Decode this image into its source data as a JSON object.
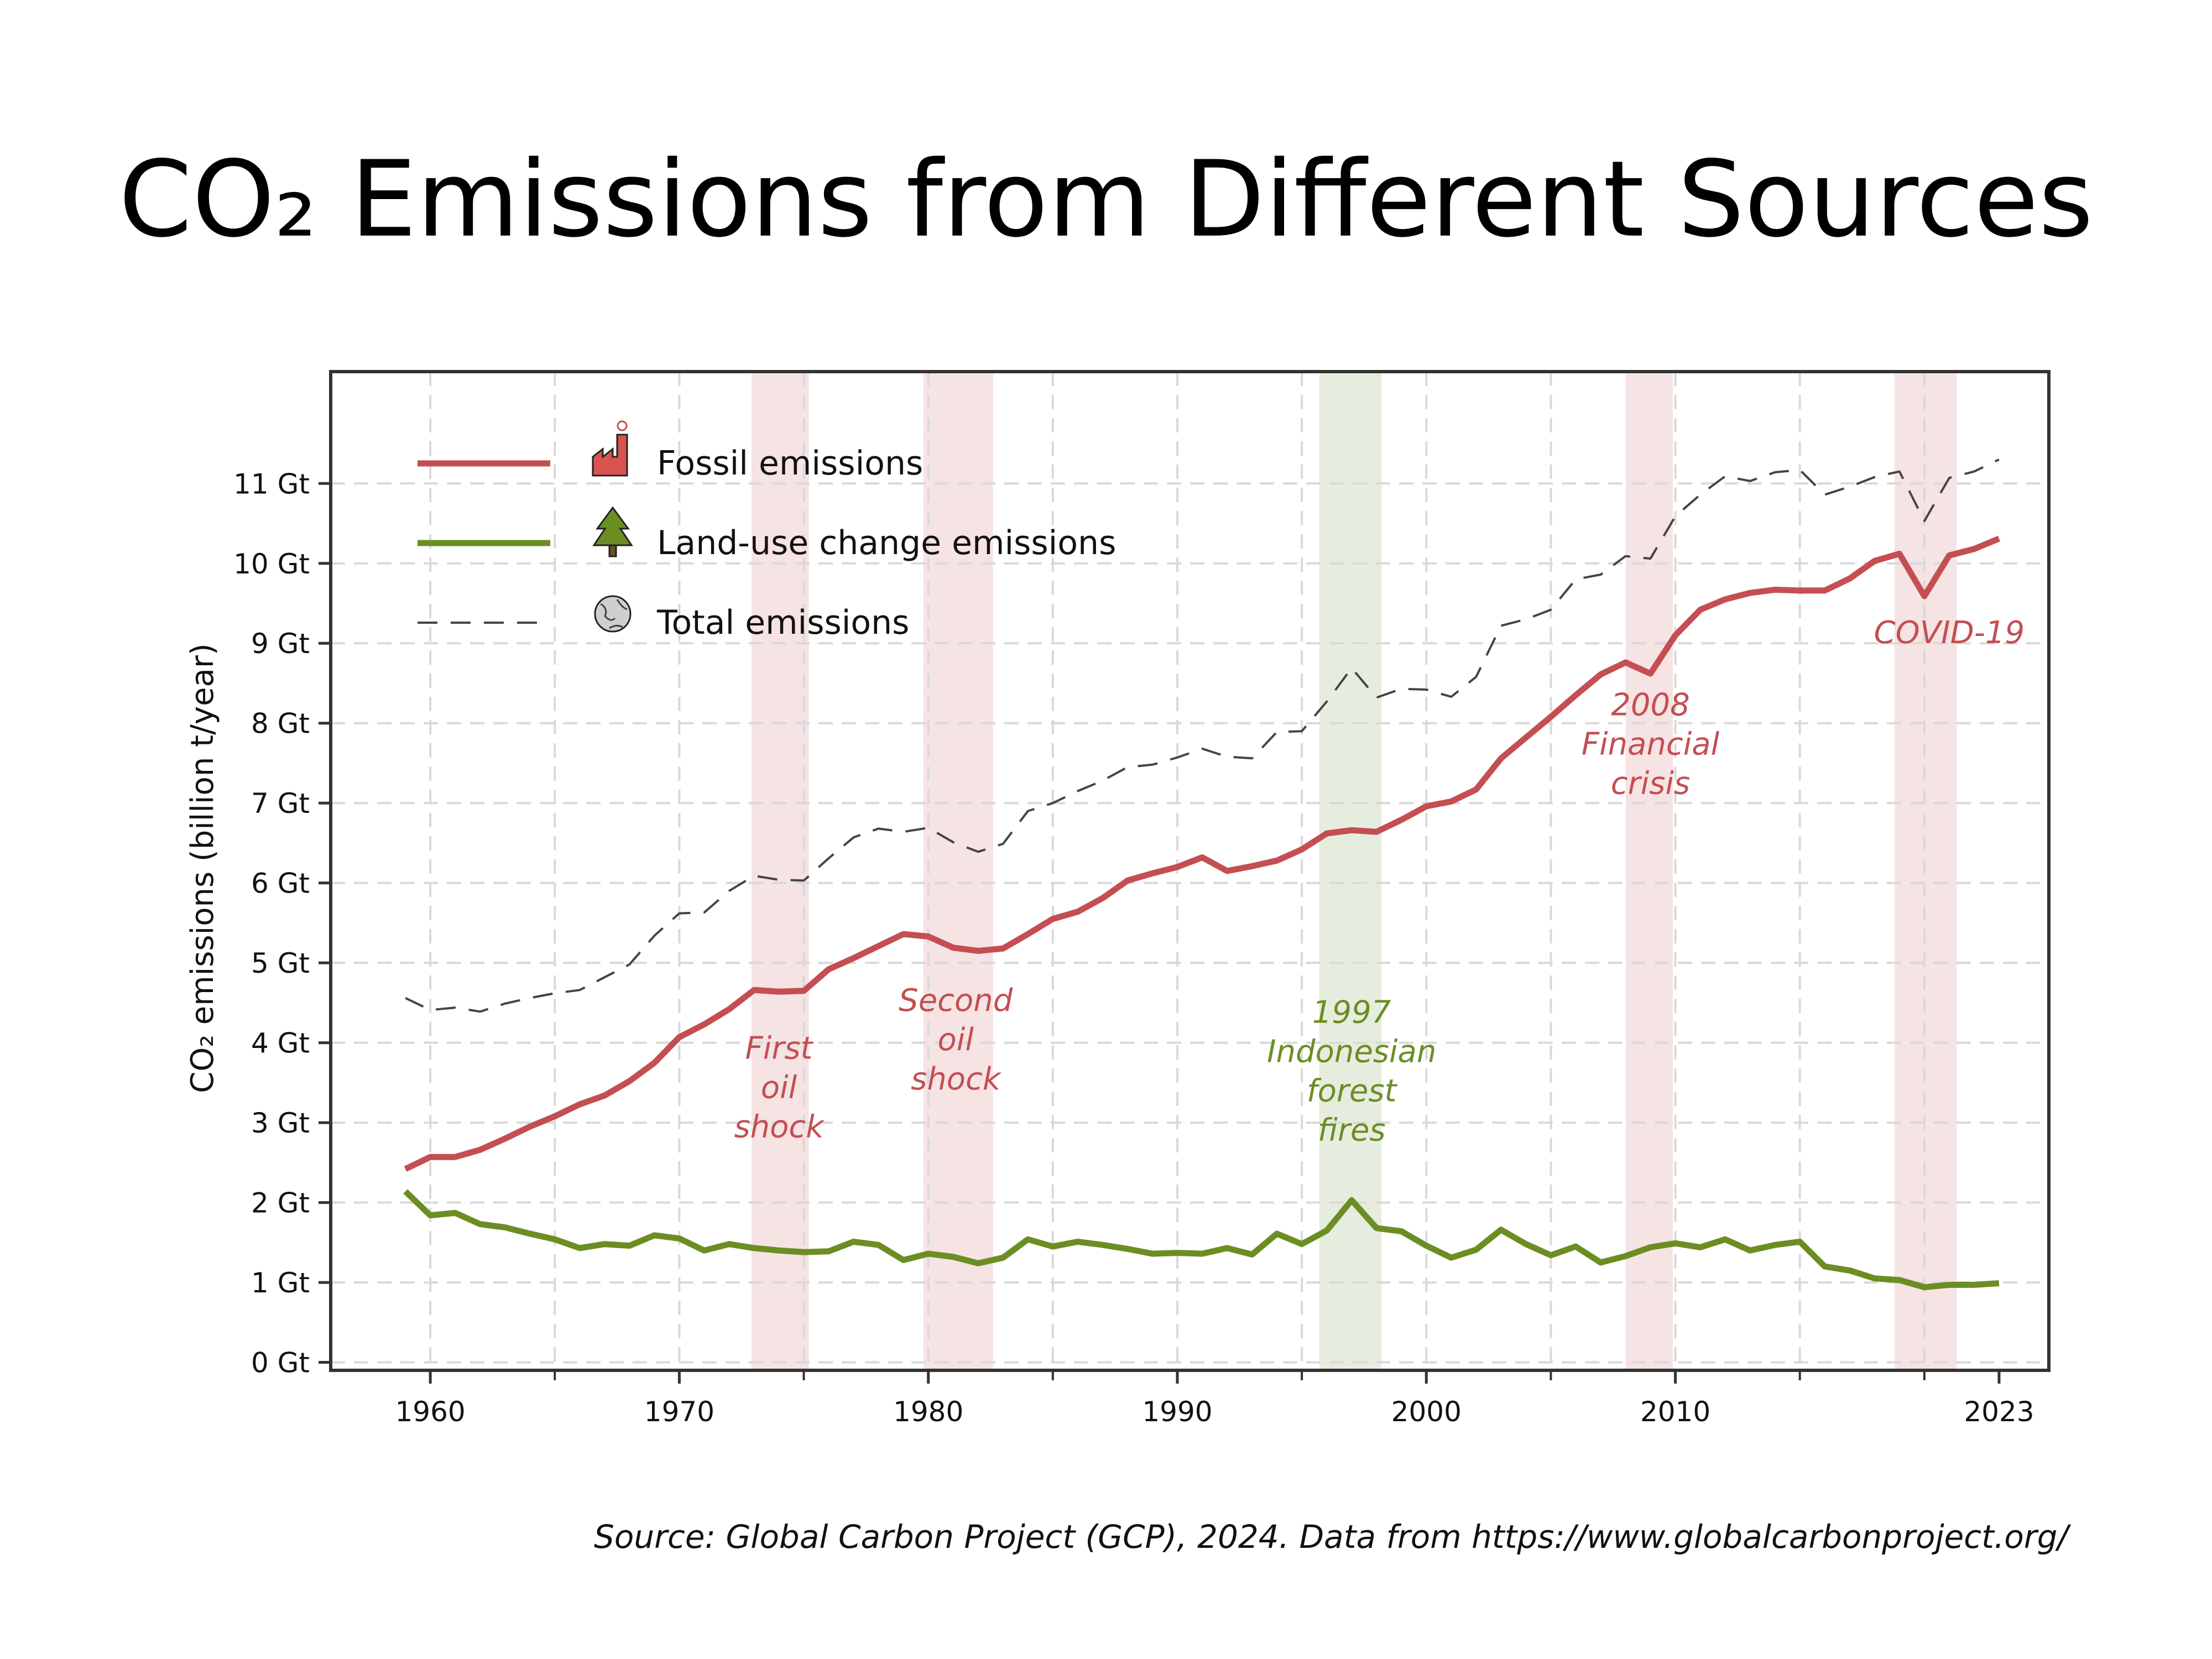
{
  "title": "CO₂ Emissions from Different Sources",
  "source": "Source: Global Carbon Project (GCP), 2024. Data from https://www.globalcarbonproject.org/",
  "chart_data": {
    "type": "line",
    "ylabel": "CO₂ emissions (billion t/year)",
    "xlabel": "",
    "xlim": [
      1956,
      2025
    ],
    "ylim": [
      -0.1,
      12.4
    ],
    "x_ticks": [
      1960,
      1970,
      1980,
      1990,
      2000,
      2010,
      2023
    ],
    "y_ticks": [
      0,
      1,
      2,
      3,
      4,
      5,
      6,
      7,
      8,
      9,
      10,
      11
    ],
    "y_tick_labels": [
      "0 Gt",
      "1 Gt",
      "2 Gt",
      "3 Gt",
      "4 Gt",
      "5 Gt",
      "6 Gt",
      "7 Gt",
      "8 Gt",
      "9 Gt",
      "10 Gt",
      "11 Gt"
    ],
    "x": [
      1959,
      1960,
      1961,
      1962,
      1963,
      1964,
      1965,
      1966,
      1967,
      1968,
      1969,
      1970,
      1971,
      1972,
      1973,
      1974,
      1975,
      1976,
      1977,
      1978,
      1979,
      1980,
      1981,
      1982,
      1983,
      1984,
      1985,
      1986,
      1987,
      1988,
      1989,
      1990,
      1991,
      1992,
      1993,
      1994,
      1995,
      1996,
      1997,
      1998,
      1999,
      2000,
      2001,
      2002,
      2003,
      2004,
      2005,
      2006,
      2007,
      2008,
      2009,
      2010,
      2011,
      2012,
      2013,
      2014,
      2015,
      2016,
      2017,
      2018,
      2019,
      2020,
      2021,
      2022,
      2023
    ],
    "grid": true,
    "legend_position": "top-left",
    "series": [
      {
        "name": "Fossil emissions",
        "color": "#c44e52",
        "style": "solid",
        "icon": "factory-icon",
        "values": [
          2.42,
          2.57,
          2.57,
          2.66,
          2.8,
          2.95,
          3.08,
          3.23,
          3.34,
          3.52,
          3.75,
          4.07,
          4.23,
          4.42,
          4.66,
          4.64,
          4.65,
          4.92,
          5.06,
          5.21,
          5.36,
          5.33,
          5.19,
          5.15,
          5.18,
          5.36,
          5.55,
          5.64,
          5.81,
          6.03,
          6.12,
          6.2,
          6.32,
          6.15,
          6.21,
          6.28,
          6.42,
          6.62,
          6.66,
          6.64,
          6.79,
          6.96,
          7.02,
          7.17,
          7.56,
          7.82,
          8.08,
          8.35,
          8.61,
          8.76,
          8.62,
          9.1,
          9.42,
          9.55,
          9.63,
          9.67,
          9.66,
          9.66,
          9.81,
          10.03,
          10.12,
          9.59,
          10.1,
          10.18,
          10.31
        ]
      },
      {
        "name": "Land-use change emissions",
        "color": "#6b8e23",
        "style": "solid",
        "icon": "tree-icon",
        "values": [
          2.14,
          1.84,
          1.87,
          1.73,
          1.69,
          1.61,
          1.54,
          1.43,
          1.48,
          1.46,
          1.59,
          1.55,
          1.4,
          1.48,
          1.43,
          1.4,
          1.38,
          1.39,
          1.51,
          1.47,
          1.28,
          1.36,
          1.32,
          1.24,
          1.31,
          1.54,
          1.45,
          1.51,
          1.47,
          1.42,
          1.36,
          1.37,
          1.36,
          1.43,
          1.35,
          1.61,
          1.48,
          1.65,
          2.03,
          1.68,
          1.64,
          1.46,
          1.31,
          1.41,
          1.66,
          1.48,
          1.34,
          1.45,
          1.25,
          1.33,
          1.44,
          1.49,
          1.44,
          1.54,
          1.4,
          1.47,
          1.51,
          1.2,
          1.15,
          1.05,
          1.03,
          0.94,
          0.97,
          0.97,
          0.99
        ]
      },
      {
        "name": "Total emissions",
        "color": "#444444",
        "style": "dashed",
        "icon": "globe-icon",
        "values": [
          4.56,
          4.41,
          4.44,
          4.39,
          4.49,
          4.56,
          4.62,
          4.66,
          4.82,
          4.98,
          5.34,
          5.62,
          5.63,
          5.9,
          6.09,
          6.04,
          6.03,
          6.31,
          6.57,
          6.68,
          6.64,
          6.69,
          6.51,
          6.39,
          6.49,
          6.9,
          7.0,
          7.15,
          7.28,
          7.45,
          7.48,
          7.57,
          7.68,
          7.58,
          7.56,
          7.89,
          7.9,
          8.27,
          8.69,
          8.32,
          8.43,
          8.42,
          8.33,
          8.58,
          9.22,
          9.3,
          9.42,
          9.8,
          9.86,
          10.09,
          10.06,
          10.59,
          10.86,
          11.09,
          11.03,
          11.14,
          11.17,
          10.86,
          10.96,
          11.08,
          11.15,
          10.53,
          11.07,
          11.15,
          11.3
        ]
      }
    ],
    "shaded_periods": [
      {
        "start": 1972.9,
        "end": 1975.2,
        "color": "#f3d9d9"
      },
      {
        "start": 1979.8,
        "end": 1982.6,
        "color": "#f3d9d9"
      },
      {
        "start": 1995.7,
        "end": 1998.2,
        "color": "#dfe7d3"
      },
      {
        "start": 2008.0,
        "end": 2009.9,
        "color": "#f3d9d9"
      },
      {
        "start": 2018.8,
        "end": 2021.3,
        "color": "#f3d9d9"
      }
    ],
    "annotations": [
      {
        "lines": [
          "First",
          "oil",
          "shock"
        ],
        "x": 1974.0,
        "y": 3.8,
        "color": "#c44e52"
      },
      {
        "lines": [
          "Second",
          "oil",
          "shock"
        ],
        "x": 1981.1,
        "y": 4.4,
        "color": "#c44e52"
      },
      {
        "lines": [
          "1997",
          "Indonesian",
          "forest",
          "fires"
        ],
        "x": 1997.0,
        "y": 4.25,
        "color": "#6b8e23"
      },
      {
        "lines": [
          "2008",
          "Financial",
          "crisis"
        ],
        "x": 2009.0,
        "y": 8.1,
        "color": "#c44e52"
      },
      {
        "lines": [
          "COVID-19"
        ],
        "x": 2021.0,
        "y": 9.0,
        "color": "#c44e52"
      }
    ]
  }
}
